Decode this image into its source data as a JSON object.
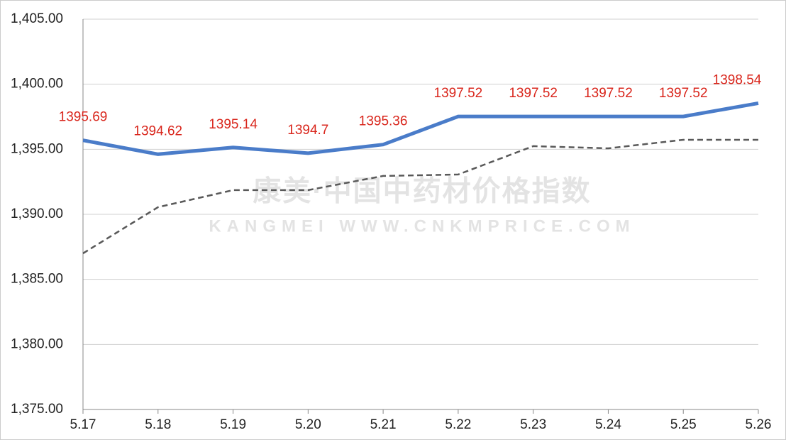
{
  "chart_data": {
    "type": "line",
    "watermark": [
      "康美·中国中药材价格指数",
      "KANGMEI WWW.CNKMPRICE.COM"
    ],
    "categories": [
      "5.17",
      "5.18",
      "5.19",
      "5.20",
      "5.21",
      "5.22",
      "5.23",
      "5.24",
      "5.25",
      "5.26"
    ],
    "series": [
      {
        "color": "#4a7cc9",
        "dash": false,
        "data_labels": true,
        "label_color": "#d9261c",
        "values": [
          1395.69,
          1394.62,
          1395.14,
          1394.7,
          1395.36,
          1397.52,
          1397.52,
          1397.52,
          1397.52,
          1398.54
        ]
      },
      {
        "color": "#595959",
        "dash": true,
        "data_labels": false,
        "values": [
          1387.0,
          1390.55,
          1391.86,
          1391.86,
          1392.95,
          1393.06,
          1395.24,
          1395.07,
          1395.73,
          1395.73
        ]
      }
    ],
    "ylim": [
      1375,
      1405
    ],
    "yticks": [
      {
        "value": 1375,
        "label": "1,375.00"
      },
      {
        "value": 1380,
        "label": "1,380.00"
      },
      {
        "value": 1385,
        "label": "1,385.00"
      },
      {
        "value": 1390,
        "label": "1,390.00"
      },
      {
        "value": 1395,
        "label": "1,395.00"
      },
      {
        "value": 1400,
        "label": "1,400.00"
      },
      {
        "value": 1405,
        "label": "1,405.00"
      }
    ],
    "grid": true
  }
}
